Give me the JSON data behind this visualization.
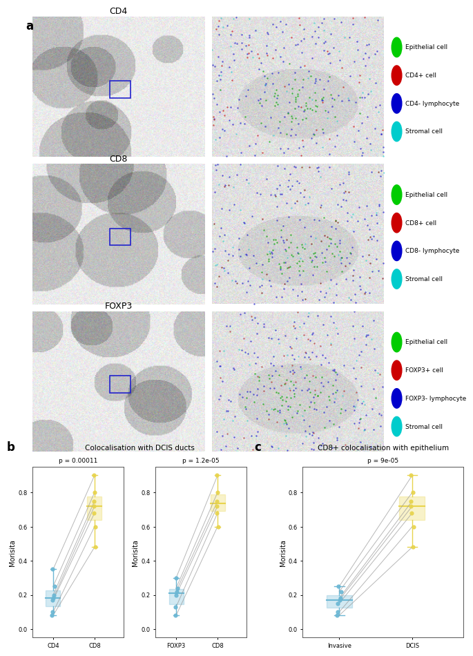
{
  "panel_a_labels": [
    "CD4",
    "CD8",
    "FOXP3"
  ],
  "legend_sets": [
    [
      {
        "label": "Epithelial cell",
        "color": "#00cc00"
      },
      {
        "label": "CD4+ cell",
        "color": "#cc0000"
      },
      {
        "label": "CD4- lymphocyte",
        "color": "#0000cc"
      },
      {
        "label": "Stromal cell",
        "color": "#00cccc"
      }
    ],
    [
      {
        "label": "Epithelial cell",
        "color": "#00cc00"
      },
      {
        "label": "CD8+ cell",
        "color": "#cc0000"
      },
      {
        "label": "CD8- lymphocyte",
        "color": "#0000cc"
      },
      {
        "label": "Stromal cell",
        "color": "#00cccc"
      }
    ],
    [
      {
        "label": "Epithelial cell",
        "color": "#00cc00"
      },
      {
        "label": "FOXP3+ cell",
        "color": "#cc0000"
      },
      {
        "label": "FOXP3- lymphocyte",
        "color": "#0000cc"
      },
      {
        "label": "Stromal cell",
        "color": "#00cccc"
      }
    ]
  ],
  "plot_b1": {
    "title": "Colocalisation with DCIS ducts",
    "p_label1": "p = 0.00011",
    "p_label2": "p = 1.2e-05",
    "xlabel1": "CD4",
    "xlabel2": "CD8",
    "xlabel3": "FOXP3",
    "xlabel4": "CD8",
    "ylabel": "Morisita",
    "cd4_values": [
      0.35,
      0.25,
      0.2,
      0.18,
      0.17,
      0.1,
      0.08
    ],
    "cd8_values": [
      0.9,
      0.8,
      0.75,
      0.72,
      0.68,
      0.6,
      0.48
    ],
    "foxp3_values": [
      0.3,
      0.24,
      0.22,
      0.2,
      0.13,
      0.08
    ],
    "cd8b_values": [
      0.9,
      0.8,
      0.75,
      0.72,
      0.68,
      0.6
    ],
    "color_low": "#6bb7d4",
    "color_high": "#e8d44d",
    "box_color_low": "#6bb7d4",
    "box_color_high": "#e8d44d"
  },
  "plot_c": {
    "title": "CD8+ colocalisation with epithelium",
    "p_label": "p = 9e-05",
    "xlabel1": "Invasive",
    "xlabel2": "DCIS",
    "ylabel": "Morisita",
    "invasive_values": [
      0.25,
      0.22,
      0.18,
      0.17,
      0.15,
      0.1,
      0.08
    ],
    "dcis_values": [
      0.9,
      0.8,
      0.75,
      0.72,
      0.68,
      0.6,
      0.48
    ],
    "color_low": "#6bb7d4",
    "color_high": "#e8d44d"
  },
  "background_color": "#ffffff",
  "panel_label_fontsize": 11,
  "axis_label_fontsize": 7,
  "tick_fontsize": 6,
  "title_fontsize": 7.5
}
